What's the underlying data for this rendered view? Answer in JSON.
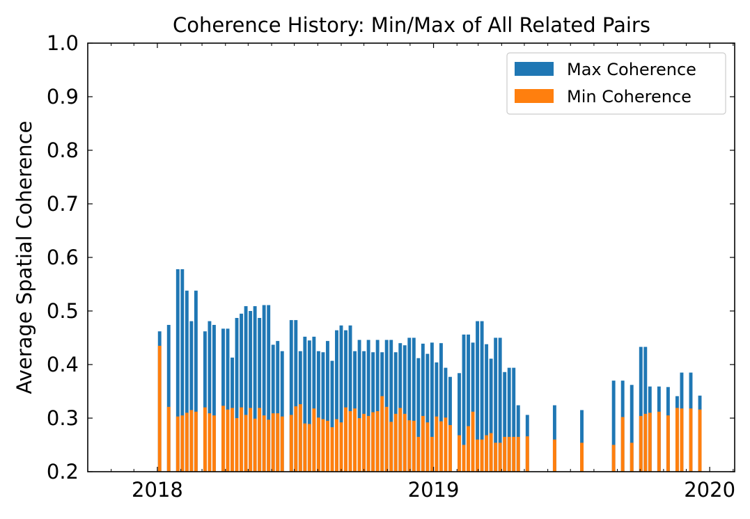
{
  "chart_data": {
    "type": "bar",
    "title": "Coherence History: Min/Max of All Related Pairs",
    "xlabel": "",
    "ylabel": "Average Spatial Coherence",
    "xlim": [
      "2017-10-01",
      "2020-02-03"
    ],
    "ylim": [
      0.2,
      1.0
    ],
    "x_ticks": [
      {
        "date": "2018-01-01",
        "label": "2018"
      },
      {
        "date": "2019-01-01",
        "label": "2019"
      },
      {
        "date": "2020-01-01",
        "label": "2020"
      }
    ],
    "y_ticks": [
      {
        "value": 0.2,
        "label": "0.2"
      },
      {
        "value": 0.3,
        "label": "0.3"
      },
      {
        "value": 0.4,
        "label": "0.4"
      },
      {
        "value": 0.5,
        "label": "0.5"
      },
      {
        "value": 0.6,
        "label": "0.6"
      },
      {
        "value": 0.7,
        "label": "0.7"
      },
      {
        "value": 0.8,
        "label": "0.8"
      },
      {
        "value": 0.9,
        "label": "0.9"
      },
      {
        "value": 1.0,
        "label": "1.0"
      }
    ],
    "grid": false,
    "legend_position": "top-right",
    "colors": {
      "max": "#1f77b4",
      "min": "#ff7f0e"
    },
    "series": [
      {
        "name": "Max Coherence",
        "color": "#1f77b4",
        "values": [
          0.462,
          0.474,
          0.578,
          0.578,
          0.538,
          0.481,
          0.538,
          0.462,
          0.481,
          0.474,
          0.467,
          0.467,
          0.413,
          0.487,
          0.495,
          0.509,
          0.5,
          0.509,
          0.487,
          0.511,
          0.511,
          0.437,
          0.444,
          0.425,
          0.483,
          0.483,
          0.425,
          0.452,
          0.445,
          0.452,
          0.425,
          0.423,
          0.444,
          0.407,
          0.464,
          0.473,
          0.464,
          0.473,
          0.425,
          0.446,
          0.425,
          0.446,
          0.423,
          0.446,
          0.423,
          0.446,
          0.446,
          0.423,
          0.44,
          0.436,
          0.45,
          0.45,
          0.412,
          0.439,
          0.42,
          0.441,
          0.404,
          0.44,
          0.394,
          0.377,
          0.384,
          0.456,
          0.456,
          0.441,
          0.481,
          0.481,
          0.438,
          0.411,
          0.45,
          0.45,
          0.386,
          0.394,
          0.394,
          0.324,
          0.306,
          0.324,
          0.315,
          0.37,
          0.37,
          0.362,
          0.433,
          0.433,
          0.359,
          0.359,
          0.358,
          0.341,
          0.385,
          0.385,
          0.342
        ]
      },
      {
        "name": "Min Coherence",
        "color": "#ff7f0e",
        "values": [
          0.435,
          0.321,
          0.303,
          0.305,
          0.31,
          0.315,
          0.312,
          0.32,
          0.309,
          0.305,
          0.323,
          0.316,
          0.319,
          0.3,
          0.32,
          0.306,
          0.319,
          0.299,
          0.319,
          0.305,
          0.297,
          0.309,
          0.309,
          0.303,
          0.306,
          0.322,
          0.326,
          0.29,
          0.289,
          0.318,
          0.301,
          0.298,
          0.295,
          0.283,
          0.298,
          0.292,
          0.32,
          0.313,
          0.318,
          0.3,
          0.308,
          0.304,
          0.311,
          0.313,
          0.341,
          0.321,
          0.293,
          0.308,
          0.319,
          0.308,
          0.296,
          0.295,
          0.265,
          0.304,
          0.292,
          0.265,
          0.303,
          0.294,
          0.301,
          0.287,
          0.268,
          0.25,
          0.285,
          0.312,
          0.26,
          0.26,
          0.268,
          0.272,
          0.254,
          0.254,
          0.265,
          0.265,
          0.265,
          0.265,
          0.266,
          0.26,
          0.254,
          0.25,
          0.302,
          0.254,
          0.304,
          0.308,
          0.31,
          0.312,
          0.305,
          0.319,
          0.318,
          0.318,
          0.316
        ]
      }
    ],
    "bar_dates": [
      "2018-01-04",
      "2018-01-16",
      "2018-01-28",
      "2018-02-03",
      "2018-02-09",
      "2018-02-15",
      "2018-02-21",
      "2018-03-05",
      "2018-03-11",
      "2018-03-17",
      "2018-03-29",
      "2018-04-04",
      "2018-04-10",
      "2018-04-16",
      "2018-04-22",
      "2018-04-28",
      "2018-05-04",
      "2018-05-10",
      "2018-05-16",
      "2018-05-22",
      "2018-05-28",
      "2018-06-03",
      "2018-06-09",
      "2018-06-15",
      "2018-06-27",
      "2018-07-03",
      "2018-07-09",
      "2018-07-15",
      "2018-07-21",
      "2018-07-27",
      "2018-08-02",
      "2018-08-08",
      "2018-08-14",
      "2018-08-20",
      "2018-08-26",
      "2018-09-01",
      "2018-09-07",
      "2018-09-13",
      "2018-09-19",
      "2018-09-25",
      "2018-10-01",
      "2018-10-07",
      "2018-10-13",
      "2018-10-19",
      "2018-10-25",
      "2018-10-31",
      "2018-11-06",
      "2018-11-12",
      "2018-11-18",
      "2018-11-24",
      "2018-11-30",
      "2018-12-06",
      "2018-12-12",
      "2018-12-18",
      "2018-12-24",
      "2018-12-30",
      "2019-01-05",
      "2019-01-11",
      "2019-01-17",
      "2019-01-23",
      "2019-02-04",
      "2019-02-10",
      "2019-02-16",
      "2019-02-22",
      "2019-02-28",
      "2019-03-06",
      "2019-03-12",
      "2019-03-18",
      "2019-03-24",
      "2019-03-30",
      "2019-04-05",
      "2019-04-11",
      "2019-04-17",
      "2019-04-23",
      "2019-05-05",
      "2019-06-10",
      "2019-07-16",
      "2019-08-27",
      "2019-09-08",
      "2019-09-20",
      "2019-10-02",
      "2019-10-08",
      "2019-10-14",
      "2019-10-26",
      "2019-11-07",
      "2019-11-19",
      "2019-11-25",
      "2019-12-07",
      "2019-12-19"
    ]
  }
}
